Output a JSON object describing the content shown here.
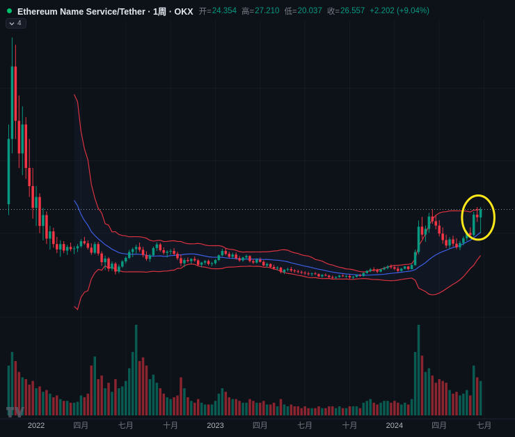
{
  "header": {
    "title": "Ethereum Name Service/Tether · 1周 · OKX",
    "open_label": "开=",
    "open_value": "24.354",
    "high_label": "高=",
    "high_value": "27.210",
    "low_label": "低=",
    "low_value": "20.037",
    "close_label": "收=",
    "close_value": "26.557",
    "change_value": "+2.202 (+9.04%)"
  },
  "toolbar": {
    "indicator_count": "4"
  },
  "colors": {
    "bg": "#0d1118",
    "up": "#089981",
    "down": "#f23645",
    "band": "#f23645",
    "basis": "#3f63f0",
    "band_fill": "rgba(70,110,240,0.05)",
    "grid": "rgba(170,185,210,0.055)",
    "axis_line": "rgba(170,185,210,0.12)",
    "tick_major": "#b2b5be",
    "tick_minor": "#787b86",
    "last_price_line": "#aab2c2",
    "annotation": "#ffe81a"
  },
  "annotation": {
    "type": "ellipse",
    "stroke_width": 3,
    "index_from": 131.6,
    "index_to": 141.0,
    "price_from": 18.2,
    "price_to": 30.4
  },
  "chart_data": {
    "type": "candlestick_with_volume",
    "title": "Ethereum Name Service/Tether",
    "interval": "1周",
    "exchange": "OKX",
    "legend_note": "values are [open, high, low, close, relative_volume] per week, estimated from pixels",
    "last_bar": {
      "open": 24.354,
      "high": 27.21,
      "low": 20.037,
      "close": 26.557,
      "change": "+2.202",
      "change_pct": "+9.04%"
    },
    "indicator": {
      "name": "BOLL",
      "period": 20,
      "mult": 2
    },
    "x_ticks": [
      {
        "i": 8,
        "label": "2022",
        "major": true
      },
      {
        "i": 21,
        "label": "四月"
      },
      {
        "i": 34,
        "label": "七月"
      },
      {
        "i": 47,
        "label": "十月"
      },
      {
        "i": 60,
        "label": "2023",
        "major": true
      },
      {
        "i": 73,
        "label": "四月"
      },
      {
        "i": 86,
        "label": "七月"
      },
      {
        "i": 99,
        "label": "十月"
      },
      {
        "i": 112,
        "label": "2024",
        "major": true
      },
      {
        "i": 125,
        "label": "四月"
      },
      {
        "i": 138,
        "label": "七月"
      }
    ],
    "candles": [
      [
        28,
        50,
        25,
        46,
        55
      ],
      [
        46,
        74,
        42,
        66,
        70
      ],
      [
        66,
        72,
        46,
        51,
        60
      ],
      [
        51,
        58,
        38,
        42,
        48
      ],
      [
        42,
        55,
        36,
        50,
        42
      ],
      [
        50,
        52,
        35,
        38,
        40
      ],
      [
        38,
        46,
        30,
        33,
        34
      ],
      [
        33,
        38,
        24,
        27,
        38
      ],
      [
        27,
        33,
        22,
        30,
        30
      ],
      [
        30,
        31,
        20,
        22,
        32
      ],
      [
        22,
        27,
        18,
        25,
        26
      ],
      [
        25,
        26,
        17,
        18.5,
        28
      ],
      [
        18.5,
        22,
        15.5,
        20.5,
        24
      ],
      [
        20.5,
        21.5,
        16,
        17,
        20
      ],
      [
        17,
        19,
        14.5,
        15.5,
        22
      ],
      [
        15.5,
        18,
        13.5,
        17,
        18
      ],
      [
        17,
        17.8,
        14.5,
        15.2,
        16
      ],
      [
        15.2,
        16.8,
        14,
        16.2,
        16
      ],
      [
        16.2,
        17.4,
        15,
        15.6,
        14
      ],
      [
        15.6,
        16.4,
        14.2,
        15.8,
        14
      ],
      [
        15.8,
        17,
        14.8,
        16.4,
        15
      ],
      [
        16.4,
        18.4,
        16,
        17.8,
        22
      ],
      [
        17.8,
        19,
        16.8,
        17.2,
        20
      ],
      [
        17.2,
        18,
        15.5,
        16,
        24
      ],
      [
        16,
        17.2,
        14,
        14.6,
        55
      ],
      [
        14.6,
        17.6,
        14.2,
        17,
        65
      ],
      [
        17,
        17.6,
        13.8,
        14.4,
        40
      ],
      [
        14.4,
        15,
        11,
        12,
        44
      ],
      [
        12,
        13.8,
        9.8,
        13,
        30
      ],
      [
        13,
        13.4,
        9.4,
        10.2,
        36
      ],
      [
        10.2,
        12.2,
        9.6,
        11.6,
        26
      ],
      [
        11.6,
        12,
        8.6,
        9.4,
        40
      ],
      [
        9.4,
        11.4,
        8.9,
        10.8,
        30
      ],
      [
        10.8,
        12.6,
        10.4,
        12.2,
        32
      ],
      [
        12.2,
        13.6,
        11.6,
        13.2,
        38
      ],
      [
        13.2,
        15.4,
        12.8,
        14.8,
        52
      ],
      [
        14.8,
        16,
        13.4,
        15.6,
        70
      ],
      [
        15.6,
        16.8,
        14.4,
        16.2,
        100
      ],
      [
        16.2,
        17.4,
        14.8,
        15.4,
        60
      ],
      [
        15.4,
        16.2,
        13.4,
        14,
        64
      ],
      [
        14,
        15,
        12.4,
        12.9,
        55
      ],
      [
        12.9,
        14.3,
        12.1,
        13.9,
        40
      ],
      [
        13.9,
        16.3,
        13.5,
        15.9,
        45
      ],
      [
        15.9,
        17.5,
        15.1,
        16.9,
        36
      ],
      [
        16.9,
        17.3,
        14.9,
        15.3,
        30
      ],
      [
        15.3,
        16.1,
        14.1,
        14.6,
        24
      ],
      [
        14.6,
        15.3,
        13.3,
        14.9,
        20
      ],
      [
        14.9,
        15.6,
        14.1,
        15.1,
        18
      ],
      [
        15.1,
        15.9,
        13.9,
        14.3,
        20
      ],
      [
        14.3,
        14.9,
        12.6,
        13.1,
        22
      ],
      [
        13.1,
        14.1,
        10.9,
        11.7,
        42
      ],
      [
        11.7,
        13.1,
        10.6,
        12.6,
        30
      ],
      [
        12.6,
        13.3,
        11.9,
        12.3,
        20
      ],
      [
        12.3,
        13.1,
        11.6,
        12.9,
        16
      ],
      [
        12.9,
        13.6,
        12.1,
        12.5,
        14
      ],
      [
        12.5,
        12.9,
        10.9,
        11.3,
        18
      ],
      [
        11.3,
        12.1,
        10.6,
        11.9,
        14
      ],
      [
        11.9,
        12.6,
        11.3,
        12.3,
        12
      ],
      [
        12.3,
        12.7,
        11.1,
        11.5,
        12
      ],
      [
        11.5,
        12.1,
        10.9,
        11.7,
        12
      ],
      [
        11.7,
        12.9,
        11.3,
        12.6,
        16
      ],
      [
        12.6,
        14.1,
        12.3,
        13.9,
        24
      ],
      [
        13.9,
        15.7,
        13.6,
        15.1,
        30
      ],
      [
        15.1,
        15.9,
        13.9,
        14.3,
        26
      ],
      [
        14.3,
        14.9,
        13.1,
        13.5,
        20
      ],
      [
        13.5,
        14.6,
        12.9,
        14.1,
        18
      ],
      [
        14.1,
        14.7,
        12.7,
        13.1,
        18
      ],
      [
        13.1,
        13.7,
        12.1,
        12.5,
        16
      ],
      [
        12.5,
        13.5,
        12.1,
        13.3,
        14
      ],
      [
        13.3,
        14.1,
        12.7,
        13.7,
        14
      ],
      [
        13.7,
        13.9,
        11.9,
        12.3,
        18
      ],
      [
        12.3,
        12.9,
        11.5,
        11.9,
        16
      ],
      [
        11.9,
        13.1,
        11.6,
        12.7,
        14
      ],
      [
        12.7,
        13.3,
        11.9,
        12.1,
        14
      ],
      [
        12.1,
        12.5,
        10.9,
        11.1,
        16
      ],
      [
        11.1,
        11.9,
        10.5,
        11.5,
        12
      ],
      [
        11.5,
        11.7,
        10.3,
        10.7,
        12
      ],
      [
        10.7,
        11.3,
        9.9,
        10.3,
        14
      ],
      [
        10.3,
        10.9,
        9.7,
        10.5,
        10
      ],
      [
        10.5,
        10.7,
        8.9,
        9.3,
        18
      ],
      [
        9.3,
        10.1,
        8.7,
        9.9,
        12
      ],
      [
        9.9,
        10.5,
        9.5,
        10.1,
        10
      ],
      [
        10.1,
        10.7,
        9.3,
        9.7,
        12
      ],
      [
        9.7,
        10.1,
        9.1,
        9.5,
        10
      ],
      [
        9.5,
        9.9,
        8.9,
        9.3,
        10
      ],
      [
        9.3,
        9.7,
        8.7,
        9.1,
        8
      ],
      [
        9.1,
        9.5,
        8.5,
        8.9,
        10
      ],
      [
        8.9,
        9.3,
        8.3,
        8.7,
        8
      ],
      [
        8.7,
        9.1,
        8.1,
        8.9,
        8
      ],
      [
        8.9,
        9.3,
        8.5,
        8.7,
        8
      ],
      [
        8.7,
        8.9,
        7.9,
        8.1,
        10
      ],
      [
        8.1,
        8.7,
        7.7,
        8.5,
        8
      ],
      [
        8.5,
        8.9,
        8.1,
        8.3,
        8
      ],
      [
        8.3,
        8.5,
        7.5,
        7.9,
        10
      ],
      [
        7.9,
        8.3,
        7.3,
        7.7,
        10
      ],
      [
        7.7,
        8.1,
        7.3,
        7.9,
        8
      ],
      [
        7.9,
        8.5,
        7.7,
        8.3,
        10
      ],
      [
        8.3,
        8.7,
        7.9,
        8.1,
        8
      ],
      [
        8.1,
        8.5,
        7.7,
        8.2,
        8
      ],
      [
        8.2,
        8.6,
        7.4,
        7.8,
        10
      ],
      [
        7.8,
        8.2,
        7.2,
        8,
        10
      ],
      [
        8,
        8.6,
        7.8,
        8.4,
        10
      ],
      [
        8.4,
        8.8,
        8,
        8.2,
        8
      ],
      [
        8.2,
        9.2,
        8,
        9,
        14
      ],
      [
        9,
        9.8,
        8.8,
        9.6,
        16
      ],
      [
        9.6,
        10.4,
        9.2,
        10,
        18
      ],
      [
        10,
        10.6,
        9.4,
        9.8,
        14
      ],
      [
        9.8,
        10.2,
        9,
        9.4,
        12
      ],
      [
        9.4,
        10.2,
        9.2,
        10,
        14
      ],
      [
        10,
        10.8,
        9.8,
        10.4,
        16
      ],
      [
        10.4,
        11.2,
        10,
        10.8,
        16
      ],
      [
        10.8,
        11.4,
        10.2,
        10.6,
        14
      ],
      [
        10.6,
        11.2,
        9.8,
        10.2,
        16
      ],
      [
        10.2,
        10.8,
        9.2,
        9.6,
        14
      ],
      [
        9.6,
        10.4,
        9.4,
        10.2,
        12
      ],
      [
        10.2,
        11,
        10,
        10.8,
        14
      ],
      [
        10.8,
        11,
        9.8,
        10.1,
        12
      ],
      [
        10.1,
        11.6,
        10,
        11.2,
        18
      ],
      [
        11.2,
        15.5,
        11,
        14.8,
        70
      ],
      [
        14.8,
        23.5,
        14.2,
        21.8,
        100
      ],
      [
        21.8,
        24.5,
        18.5,
        19.6,
        66
      ],
      [
        19.6,
        22.1,
        17.6,
        21.2,
        48
      ],
      [
        21.2,
        25.6,
        20.1,
        24.6,
        52
      ],
      [
        24.6,
        26.6,
        22.6,
        23.3,
        44
      ],
      [
        23.3,
        24.9,
        21.1,
        22.1,
        36
      ],
      [
        22.1,
        23.6,
        19.1,
        19.9,
        40
      ],
      [
        19.9,
        21.6,
        17.1,
        18.1,
        38
      ],
      [
        18.1,
        19.6,
        15.9,
        16.6,
        36
      ],
      [
        16.6,
        18.9,
        15.6,
        18.3,
        28
      ],
      [
        18.3,
        19.3,
        16.3,
        17.1,
        24
      ],
      [
        17.1,
        18.6,
        15.6,
        16.1,
        26
      ],
      [
        16.1,
        17.9,
        15.3,
        17.3,
        22
      ],
      [
        17.3,
        19.1,
        16.6,
        18.6,
        24
      ],
      [
        18.6,
        20.6,
        17.9,
        20.1,
        28
      ],
      [
        20.1,
        21.6,
        18.9,
        19.5,
        22
      ],
      [
        19.5,
        25.9,
        19.1,
        25.1,
        55
      ],
      [
        25.1,
        27.2,
        23.1,
        24.4,
        42
      ],
      [
        24.354,
        27.21,
        20.037,
        26.557,
        38
      ]
    ]
  }
}
